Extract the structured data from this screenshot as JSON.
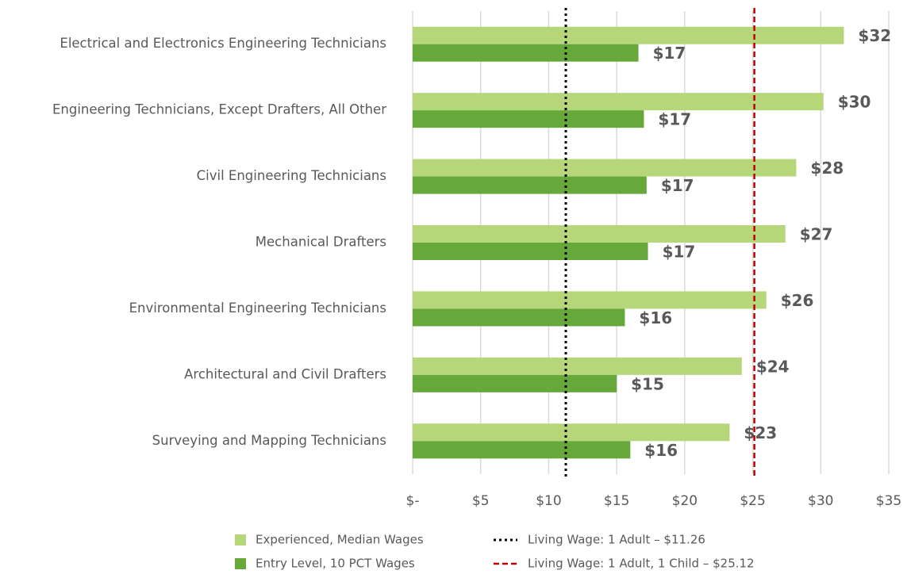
{
  "chart_data": {
    "type": "hbar",
    "categories": [
      "Electrical and Electronics Engineering Technicians",
      "Engineering Technicians, Except Drafters, All Other",
      "Civil Engineering Technicians",
      "Mechanical Drafters",
      "Environmental Engineering Technicians",
      "Architectural and Civil Drafters",
      "Surveying and Mapping Technicians"
    ],
    "series": [
      {
        "name": "Experienced, Median Wages",
        "color": "#b5d77a",
        "values": [
          31.7,
          30.2,
          28.2,
          27.4,
          26.0,
          24.2,
          23.3
        ],
        "value_labels": [
          "$32",
          "$30",
          "$28",
          "$27",
          "$26",
          "$24",
          "$23"
        ]
      },
      {
        "name": "Entry Level, 10 PCT Wages",
        "color": "#67a83a",
        "values": [
          16.6,
          17.0,
          17.2,
          17.3,
          15.6,
          15.0,
          16.0
        ],
        "value_labels": [
          "$17",
          "$17",
          "$17",
          "$17",
          "$16",
          "$15",
          "$16"
        ]
      }
    ],
    "reference_lines": [
      {
        "label": "Living Wage: 1 Adult – $11.26",
        "value": 11.26,
        "color": "#000000",
        "style": "dotted"
      },
      {
        "label": "Living Wage: 1 Adult, 1 Child – $25.12",
        "value": 25.12,
        "color": "#c00000",
        "style": "dashed"
      }
    ],
    "xlim": [
      0,
      35
    ],
    "xticks": [
      {
        "value": 0,
        "label": "$-"
      },
      {
        "value": 5,
        "label": "$5"
      },
      {
        "value": 10,
        "label": "$10"
      },
      {
        "value": 15,
        "label": "$15"
      },
      {
        "value": 20,
        "label": "$20"
      },
      {
        "value": 25,
        "label": "$25"
      },
      {
        "value": 30,
        "label": "$30"
      },
      {
        "value": 35,
        "label": "$35"
      }
    ],
    "grid": true
  }
}
